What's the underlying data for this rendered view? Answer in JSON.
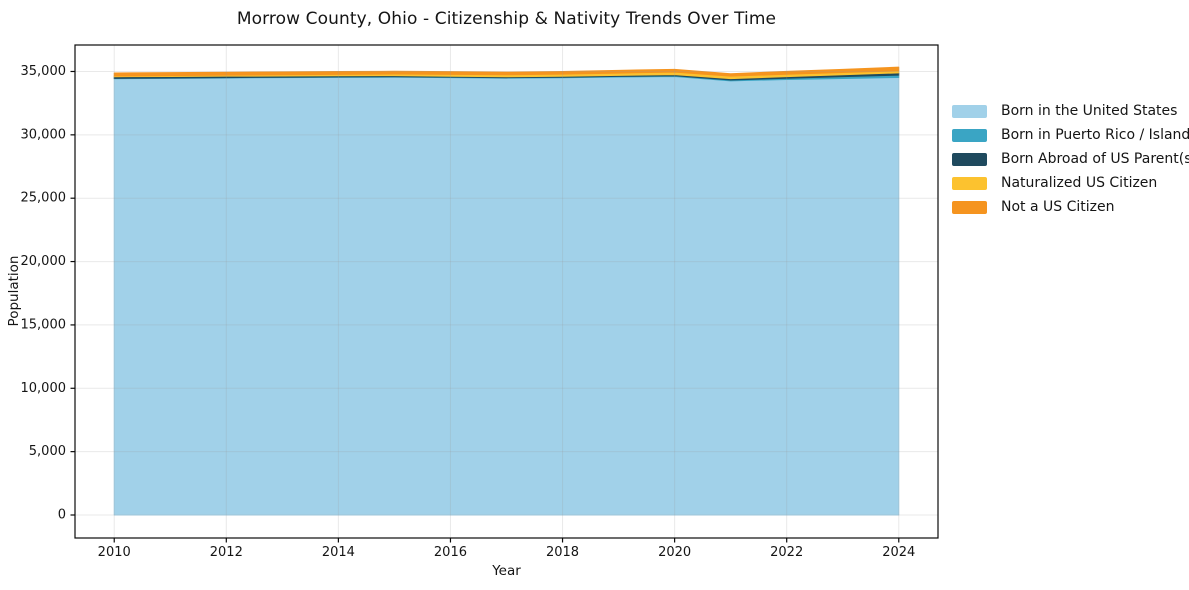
{
  "chart_data": {
    "type": "area",
    "stacked": true,
    "title": "Morrow County, Ohio - Citizenship & Nativity Trends Over Time",
    "xlabel": "Year",
    "ylabel": "Population",
    "x": [
      2010,
      2011,
      2012,
      2013,
      2014,
      2015,
      2016,
      2017,
      2018,
      2019,
      2020,
      2021,
      2022,
      2023,
      2024
    ],
    "series": [
      {
        "name": "Born in the United States",
        "color": "#a1d1e9",
        "values": [
          34430,
          34460,
          34490,
          34515,
          34535,
          34550,
          34515,
          34480,
          34505,
          34560,
          34600,
          34260,
          34370,
          34450,
          34530
        ]
      },
      {
        "name": "Born in Puerto Rico / Islands",
        "color": "#3aa5c4",
        "values": [
          25,
          25,
          30,
          30,
          35,
          35,
          35,
          30,
          40,
          50,
          60,
          70,
          100,
          140,
          185
        ]
      },
      {
        "name": "Born Abroad of US Parent(s)",
        "color": "#1f4a5e",
        "values": [
          130,
          120,
          110,
          100,
          95,
          85,
          75,
          70,
          75,
          85,
          95,
          105,
          125,
          150,
          175
        ]
      },
      {
        "name": "Naturalized US Citizen",
        "color": "#fcc22f",
        "values": [
          65,
          72,
          82,
          95,
          110,
          130,
          150,
          160,
          170,
          180,
          190,
          200,
          185,
          175,
          165
        ]
      },
      {
        "name": "Not a US Citizen",
        "color": "#f5941f",
        "values": [
          230,
          230,
          230,
          228,
          225,
          215,
          210,
          205,
          205,
          215,
          225,
          185,
          230,
          255,
          290
        ]
      }
    ],
    "xticks": [
      2010,
      2012,
      2014,
      2016,
      2018,
      2020,
      2022,
      2024
    ],
    "xtick_labels": [
      "2010",
      "2012",
      "2014",
      "2016",
      "2018",
      "2020",
      "2022",
      "2024"
    ],
    "yticks": [
      0,
      5000,
      10000,
      15000,
      20000,
      25000,
      30000,
      35000
    ],
    "ytick_labels": [
      "0",
      "5,000",
      "10,000",
      "15,000",
      "20,000",
      "25,000",
      "30,000",
      "35,000"
    ],
    "xlim": [
      2009.3,
      2024.7
    ],
    "ylim": [
      -1815,
      37090
    ],
    "grid": true,
    "legend_position": "outside-right",
    "colors": {
      "background": "#ffffff",
      "grid": "#9a9a9a",
      "grid_opacity": 0.22,
      "spine": "#0a0a0a",
      "tick_text": "#151515"
    }
  }
}
